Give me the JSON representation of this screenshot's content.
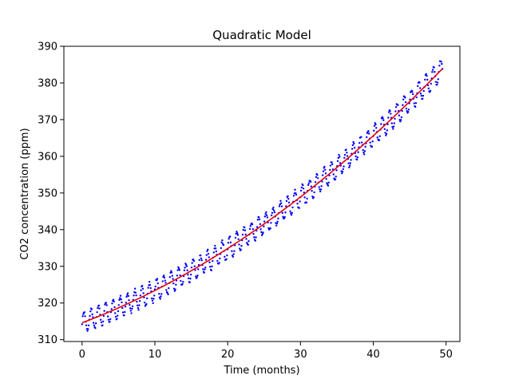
{
  "chart_data": {
    "type": "scatter",
    "title": "Quadratic Model",
    "xlabel": "Time (months)",
    "ylabel": "CO2 concentration (ppm)",
    "xlim": [
      -2.5,
      51.9
    ],
    "ylim": [
      309.5,
      390
    ],
    "xticks": [
      0,
      10,
      20,
      30,
      40,
      50
    ],
    "yticks": [
      310,
      320,
      330,
      340,
      350,
      360,
      370,
      380,
      390
    ],
    "grid": false,
    "series": [
      {
        "kind": "scatter",
        "color": "#0000ff",
        "marker_size": 1.8,
        "sampling": {
          "x_start": 0.0,
          "x_end": 49.5,
          "n_points": 600
        },
        "trend": {
          "a": 0.01313,
          "b": 0.7498,
          "c": 314.6
        },
        "seasonal": {
          "amplitude": 2.8,
          "period_months": 1.0
        }
      },
      {
        "kind": "line",
        "color": "#e8000b",
        "line_width": 1.6,
        "x_range": [
          0,
          49.5
        ],
        "coefficients": {
          "a": 0.01313,
          "b": 0.7498,
          "c": 314.6
        }
      }
    ]
  }
}
